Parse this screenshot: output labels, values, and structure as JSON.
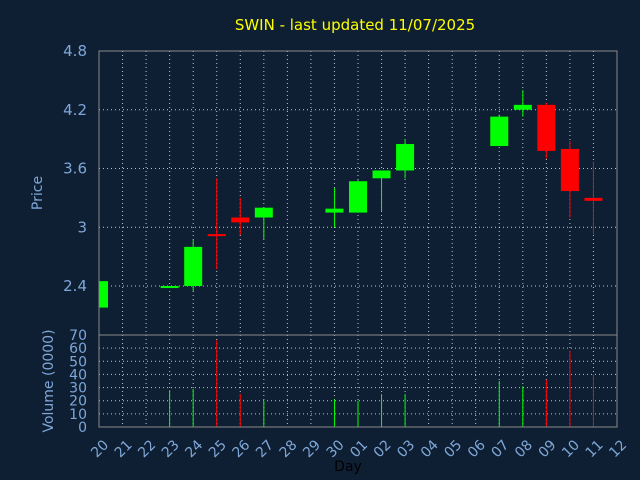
{
  "chart_data": {
    "type": "candlestick",
    "title": "SWIN - last updated 11/07/2025",
    "ylabel": "Price",
    "volume_label": "Volume (0000)",
    "xlabel": "Day",
    "ylim": [
      1.9,
      4.8
    ],
    "volume_lim": [
      0,
      70
    ],
    "price_ticks": [
      "4.8",
      "4.2",
      "3.6",
      "3",
      "2.4"
    ],
    "price_tick_values": [
      4.8,
      4.2,
      3.6,
      3.0,
      2.4
    ],
    "volume_ticks": [
      "70",
      "60",
      "50",
      "40",
      "30",
      "20",
      "10",
      "0"
    ],
    "volume_tick_values": [
      70,
      60,
      50,
      40,
      30,
      20,
      10,
      0
    ],
    "days": [
      "20",
      "21",
      "22",
      "23",
      "24",
      "25",
      "26",
      "27",
      "28",
      "29",
      "30",
      "01",
      "02",
      "03",
      "04",
      "05",
      "06",
      "07",
      "08",
      "09",
      "10",
      "11",
      "12"
    ],
    "candles": [
      {
        "day": "20",
        "open": 2.18,
        "high": 2.45,
        "low": 2.18,
        "close": 2.45,
        "volume": 0
      },
      {
        "day": "23",
        "open": 2.38,
        "high": 2.4,
        "low": 2.38,
        "close": 2.4,
        "volume": 28
      },
      {
        "day": "24",
        "open": 2.4,
        "high": 2.87,
        "low": 2.35,
        "close": 2.8,
        "volume": 29
      },
      {
        "day": "25",
        "open": 2.93,
        "high": 3.5,
        "low": 2.57,
        "close": 2.92,
        "volume": 66
      },
      {
        "day": "26",
        "open": 3.1,
        "high": 3.3,
        "low": 2.92,
        "close": 3.05,
        "volume": 25
      },
      {
        "day": "27",
        "open": 3.1,
        "high": 3.2,
        "low": 2.88,
        "close": 3.2,
        "volume": 20
      },
      {
        "day": "30",
        "open": 3.15,
        "high": 3.4,
        "low": 3.0,
        "close": 3.19,
        "volume": 21
      },
      {
        "day": "01",
        "open": 3.15,
        "high": 3.48,
        "low": 3.15,
        "close": 3.47,
        "volume": 20
      },
      {
        "day": "02",
        "open": 3.5,
        "high": 3.58,
        "low": 3.16,
        "close": 3.58,
        "volume": 25
      },
      {
        "day": "03",
        "open": 3.58,
        "high": 3.9,
        "low": 3.5,
        "close": 3.85,
        "volume": 25
      },
      {
        "day": "07",
        "open": 3.83,
        "high": 4.15,
        "low": 3.83,
        "close": 4.13,
        "volume": 35
      },
      {
        "day": "08",
        "open": 4.2,
        "high": 4.4,
        "low": 4.13,
        "close": 4.25,
        "volume": 31
      },
      {
        "day": "09",
        "open": 4.25,
        "high": 4.27,
        "low": 3.7,
        "close": 3.78,
        "volume": 36
      },
      {
        "day": "10",
        "open": 3.8,
        "high": 3.88,
        "low": 3.1,
        "close": 3.37,
        "volume": 58
      },
      {
        "day": "11",
        "open": 3.3,
        "high": 3.67,
        "low": 2.93,
        "close": 3.27,
        "volume": 40
      }
    ],
    "colors": {
      "background": "#0f1f33",
      "up": "#00ff00",
      "down": "#ff0000",
      "title": "#ffff00",
      "axis_text": "#7ea7d8",
      "grid": "#ffffff"
    },
    "grid": true
  }
}
